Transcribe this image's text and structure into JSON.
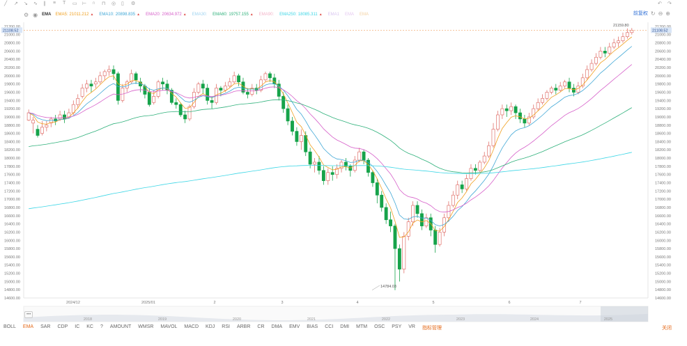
{
  "toolbar": {
    "icons": [
      "trend-line-icon",
      "ray-icon",
      "arrow-icon",
      "wave-icon",
      "parallel-icon",
      "fib-icon",
      "text-icon",
      "rect-icon",
      "ruler-icon",
      "magnet-icon",
      "lock-icon",
      "eye-icon",
      "trash-icon",
      "settings-icon"
    ],
    "right_icons": [
      "undo-icon",
      "redo-icon"
    ]
  },
  "legend": {
    "title": "EMA",
    "items": [
      {
        "label": "EMA5:",
        "value": "21011.212",
        "color": "#f0a020",
        "arrow": "▲"
      },
      {
        "label": "EMA10:",
        "value": "20898.835",
        "color": "#3fa7d6",
        "arrow": "▲"
      },
      {
        "label": "EMA20:",
        "value": "20634.972",
        "color": "#d65fc9",
        "arrow": "▲"
      },
      {
        "label": "EMA30:",
        "value": "",
        "color": "#9fd3f0",
        "arrow": ""
      },
      {
        "label": "EMA60:",
        "value": "19757.155",
        "color": "#2db07a",
        "arrow": "▲"
      },
      {
        "label": "EMA90:",
        "value": "",
        "color": "#f3b3c8",
        "arrow": ""
      },
      {
        "label": "EMA250:",
        "value": "18085.311",
        "color": "#3cd6e6",
        "arrow": "▲"
      },
      {
        "label": "EMA1",
        "value": "",
        "color": "#d9c6f0",
        "arrow": ""
      },
      {
        "label": "EMA",
        "value": "",
        "color": "#e5c8f0",
        "arrow": ""
      },
      {
        "label": "EMA",
        "value": "",
        "color": "#f3d0a0",
        "arrow": ""
      }
    ],
    "right_label": "前复权"
  },
  "price_axis": {
    "ticks": [
      "21200.00",
      "21000.00",
      "20800.00",
      "20600.00",
      "20400.00",
      "20200.00",
      "20000.00",
      "19800.00",
      "19600.00",
      "19400.00",
      "19200.00",
      "19000.00",
      "18800.00",
      "18600.00",
      "18400.00",
      "18200.00",
      "18000.00",
      "17800.00",
      "17600.00",
      "17400.00",
      "17200.00",
      "17000.00",
      "16800.00",
      "16600.00",
      "16400.00",
      "16200.00",
      "16000.00",
      "15800.00",
      "15600.00",
      "15400.00",
      "15200.00",
      "15000.00",
      "14800.00",
      "14600.00"
    ],
    "current_price": "21108.52",
    "high_label": "21159.80",
    "low_label": "14784.03"
  },
  "time_axis": {
    "ticks": [
      "2024/12",
      "2025/01",
      "2",
      "3",
      "4",
      "5",
      "6",
      "7"
    ]
  },
  "navigator": {
    "ellipsis": "•••",
    "years": [
      "2018",
      "2019",
      "2020",
      "2021",
      "2022",
      "2023",
      "2024",
      "2025"
    ]
  },
  "indicators": {
    "tabs": [
      "BOLL",
      "EMA",
      "SAR",
      "CDP",
      "IC",
      "KC",
      "?",
      "AMOUNT",
      "WMSR",
      "MAVOL",
      "MACD",
      "KDJ",
      "RSI",
      "ARBR",
      "CR",
      "DMA",
      "EMV",
      "BIAS",
      "CCI",
      "DMI",
      "MTM",
      "OSC",
      "PSY",
      "VR"
    ],
    "active": "EMA",
    "manage_label": "指标管理",
    "close_label": "关闭"
  },
  "colors": {
    "up": "#e0726c",
    "down": "#16a34a",
    "ema5": "#f0a020",
    "ema10": "#3fa7d6",
    "ema20": "#d65fc9",
    "ema60": "#2db07a",
    "ema250": "#3cd6e6",
    "price_line": "#f0a060"
  },
  "chart_data": {
    "type": "candlestick",
    "ylim": [
      14600,
      21300
    ],
    "candles": [
      [
        18920,
        19100,
        18900,
        19180
      ],
      [
        18850,
        18920,
        18600,
        19000
      ],
      [
        18700,
        18550,
        18500,
        18800
      ],
      [
        18600,
        18750,
        18550,
        18900
      ],
      [
        18750,
        18800,
        18650,
        18900
      ],
      [
        18850,
        18950,
        18750,
        19000
      ],
      [
        18950,
        18900,
        18800,
        19050
      ],
      [
        18950,
        19050,
        18900,
        19150
      ],
      [
        19050,
        18950,
        18850,
        19150
      ],
      [
        19000,
        19100,
        18950,
        19200
      ],
      [
        19100,
        19300,
        19050,
        19400
      ],
      [
        19300,
        19450,
        19200,
        19550
      ],
      [
        19500,
        19700,
        19450,
        19800
      ],
      [
        19700,
        19800,
        19600,
        19900
      ],
      [
        19800,
        19750,
        19600,
        19900
      ],
      [
        19800,
        19850,
        19700,
        19950
      ],
      [
        19850,
        20000,
        19800,
        20100
      ],
      [
        20000,
        20100,
        19900,
        20150
      ],
      [
        20100,
        20150,
        20000,
        20250
      ],
      [
        20150,
        20050,
        19900,
        20250
      ],
      [
        20050,
        19400,
        19300,
        20100
      ],
      [
        19400,
        19700,
        19350,
        19800
      ],
      [
        19700,
        19850,
        19600,
        19900
      ],
      [
        19850,
        20050,
        19800,
        20150
      ],
      [
        20050,
        19900,
        19800,
        20100
      ],
      [
        19850,
        19750,
        19600,
        19950
      ],
      [
        19750,
        19550,
        19450,
        19800
      ],
      [
        19600,
        19300,
        19250,
        19700
      ],
      [
        19350,
        19500,
        19300,
        19650
      ],
      [
        19500,
        19850,
        19450,
        19900
      ],
      [
        19850,
        19800,
        19650,
        19950
      ],
      [
        19800,
        19650,
        19550,
        19900
      ],
      [
        19650,
        19350,
        19300,
        19700
      ],
      [
        19350,
        19300,
        19200,
        19450
      ],
      [
        19300,
        19050,
        19000,
        19350
      ],
      [
        19050,
        18950,
        18850,
        19150
      ],
      [
        18950,
        19250,
        18900,
        19300
      ],
      [
        19250,
        19600,
        19200,
        19700
      ],
      [
        19600,
        19800,
        19550,
        19850
      ],
      [
        19800,
        19700,
        19550,
        19900
      ],
      [
        19700,
        19400,
        19300,
        19800
      ],
      [
        19400,
        19350,
        19200,
        19500
      ],
      [
        19350,
        19700,
        19300,
        19800
      ],
      [
        19700,
        19650,
        19500,
        19750
      ],
      [
        19650,
        19750,
        19600,
        19850
      ],
      [
        19750,
        19850,
        19700,
        19950
      ],
      [
        19850,
        20000,
        19800,
        20100
      ],
      [
        20000,
        19850,
        19750,
        20050
      ],
      [
        19850,
        19600,
        19550,
        19950
      ],
      [
        19600,
        19550,
        19450,
        19700
      ],
      [
        19550,
        19700,
        19500,
        19800
      ],
      [
        19700,
        19650,
        19550,
        19800
      ],
      [
        19650,
        19900,
        19600,
        20000
      ],
      [
        19900,
        20050,
        19850,
        20100
      ],
      [
        20050,
        19950,
        19850,
        20100
      ],
      [
        19950,
        19800,
        19700,
        20050
      ],
      [
        19800,
        19500,
        19400,
        19900
      ],
      [
        19500,
        19200,
        19100,
        19600
      ],
      [
        19200,
        18900,
        18800,
        19300
      ],
      [
        18900,
        18650,
        18550,
        19000
      ],
      [
        18650,
        18400,
        18300,
        18750
      ],
      [
        18400,
        18550,
        18200,
        18700
      ],
      [
        18550,
        18150,
        18050,
        18650
      ],
      [
        18150,
        17850,
        17750,
        18250
      ],
      [
        17850,
        17900,
        17650,
        18000
      ],
      [
        17900,
        17700,
        17600,
        18050
      ],
      [
        17700,
        17450,
        17350,
        17800
      ],
      [
        17450,
        17650,
        17350,
        17750
      ],
      [
        17650,
        17600,
        17450,
        17800
      ],
      [
        17600,
        17750,
        17500,
        17850
      ],
      [
        17750,
        17900,
        17650,
        17950
      ],
      [
        17900,
        17800,
        17700,
        18000
      ],
      [
        17800,
        17700,
        17550,
        17850
      ],
      [
        17700,
        17950,
        17650,
        18050
      ],
      [
        17950,
        18150,
        17900,
        18250
      ],
      [
        18150,
        17950,
        17850,
        18200
      ],
      [
        17950,
        17650,
        17550,
        18000
      ],
      [
        17650,
        17400,
        17300,
        17700
      ],
      [
        17400,
        17100,
        16900,
        17500
      ],
      [
        17100,
        16800,
        16700,
        17200
      ],
      [
        16800,
        16500,
        16400,
        16900
      ],
      [
        16500,
        16350,
        16200,
        16700
      ],
      [
        16350,
        15800,
        14790,
        16400
      ],
      [
        15800,
        15300,
        15000,
        15900
      ],
      [
        15300,
        16100,
        15200,
        16200
      ],
      [
        16100,
        16450,
        16000,
        16550
      ],
      [
        16450,
        16850,
        16350,
        16950
      ],
      [
        16850,
        16650,
        16550,
        16950
      ],
      [
        16650,
        16350,
        16250,
        16750
      ],
      [
        16350,
        16550,
        16300,
        16650
      ],
      [
        16550,
        16250,
        16100,
        16650
      ],
      [
        16250,
        15900,
        15700,
        16350
      ],
      [
        15900,
        16200,
        15850,
        16300
      ],
      [
        16200,
        16550,
        16100,
        16650
      ],
      [
        16550,
        16850,
        16450,
        16950
      ],
      [
        16850,
        17100,
        16800,
        17200
      ],
      [
        17100,
        17350,
        17000,
        17450
      ],
      [
        17350,
        17250,
        17150,
        17450
      ],
      [
        17250,
        17500,
        17200,
        17600
      ],
      [
        17500,
        17750,
        17450,
        17850
      ],
      [
        17750,
        17700,
        17600,
        17850
      ],
      [
        17700,
        17900,
        17650,
        17950
      ],
      [
        17900,
        18050,
        17850,
        18150
      ],
      [
        18050,
        18300,
        18000,
        18400
      ],
      [
        18300,
        18700,
        18250,
        18850
      ],
      [
        18700,
        19050,
        18650,
        19150
      ],
      [
        19050,
        19200,
        18950,
        19300
      ],
      [
        19200,
        19150,
        19000,
        19300
      ],
      [
        19150,
        19250,
        19050,
        19350
      ],
      [
        19250,
        19100,
        18950,
        19300
      ],
      [
        19100,
        18950,
        18850,
        19200
      ],
      [
        18950,
        18850,
        18750,
        19050
      ],
      [
        18850,
        19000,
        18800,
        19100
      ],
      [
        19000,
        19200,
        18950,
        19300
      ],
      [
        19200,
        19350,
        19150,
        19450
      ],
      [
        19350,
        19450,
        19300,
        19550
      ],
      [
        19450,
        19600,
        19400,
        19650
      ],
      [
        19600,
        19700,
        19550,
        19750
      ],
      [
        19700,
        19650,
        19550,
        19800
      ],
      [
        19650,
        19750,
        19600,
        19850
      ],
      [
        19750,
        19850,
        19700,
        19900
      ],
      [
        19850,
        19700,
        19600,
        19950
      ],
      [
        19700,
        19600,
        19500,
        19800
      ],
      [
        19600,
        19750,
        19550,
        19850
      ],
      [
        19750,
        19950,
        19700,
        20050
      ],
      [
        19950,
        20150,
        19900,
        20250
      ],
      [
        20150,
        20300,
        20100,
        20400
      ],
      [
        20300,
        20450,
        20250,
        20550
      ],
      [
        20450,
        20600,
        20400,
        20700
      ],
      [
        20600,
        20550,
        20450,
        20700
      ],
      [
        20550,
        20700,
        20500,
        20800
      ],
      [
        20700,
        20800,
        20650,
        20900
      ],
      [
        20800,
        20850,
        20700,
        20950
      ],
      [
        20850,
        20950,
        20800,
        21050
      ],
      [
        20950,
        21050,
        20900,
        21150
      ],
      [
        21050,
        21108,
        21000,
        21160
      ]
    ],
    "series_names": [
      "EMA5",
      "EMA10",
      "EMA20",
      "EMA60",
      "EMA250"
    ]
  }
}
